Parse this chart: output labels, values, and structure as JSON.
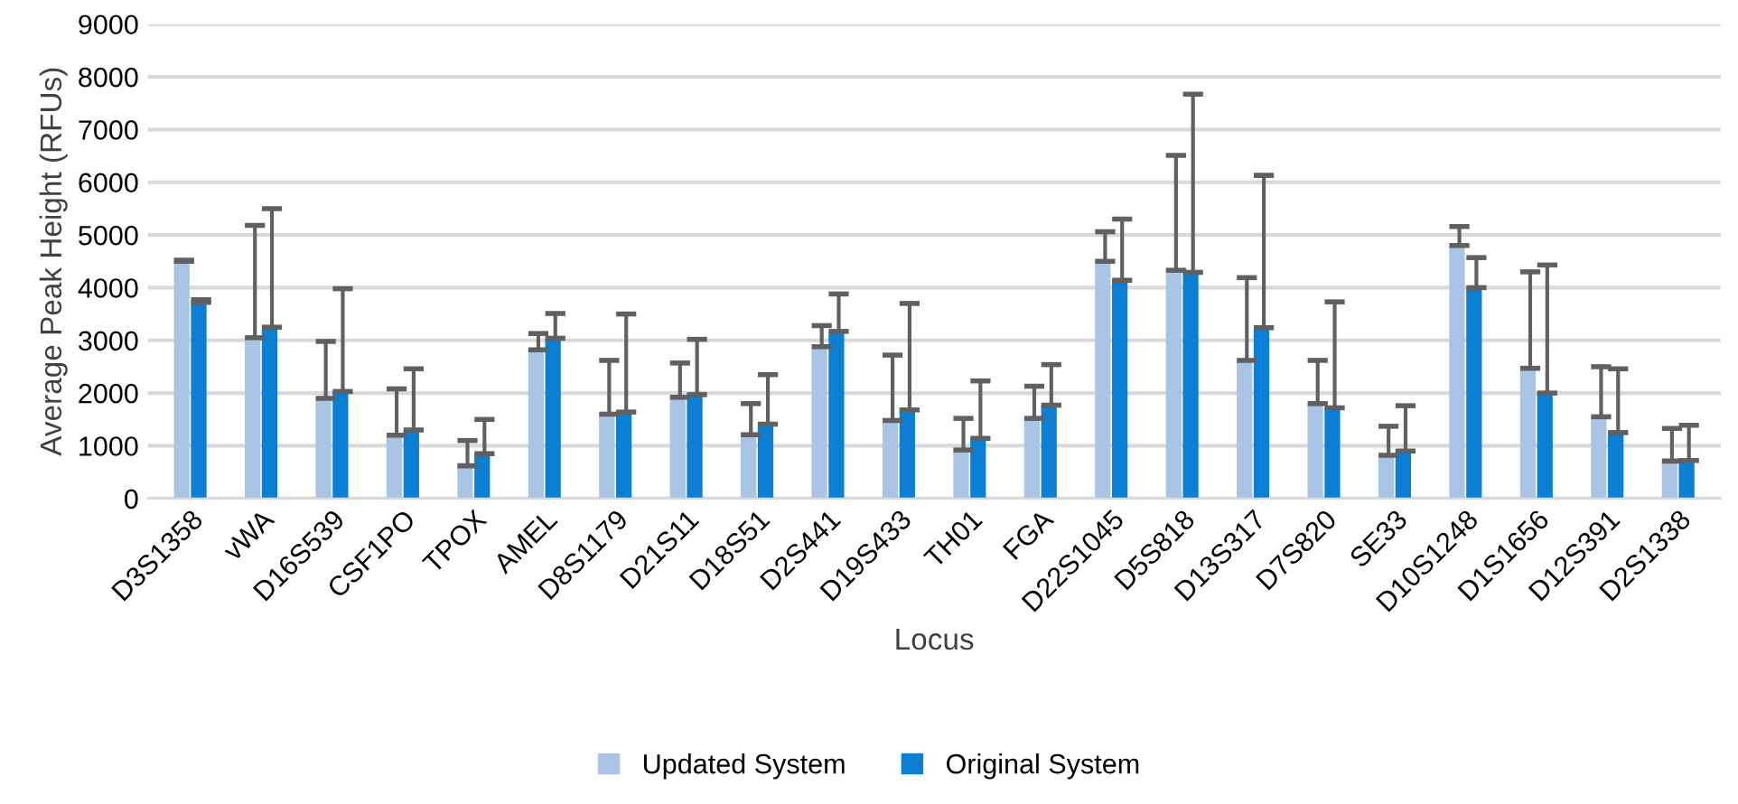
{
  "chart_data": {
    "type": "bar",
    "xlabel": "Locus",
    "ylabel": "Average Peak Height (RFUs)",
    "categories": [
      "D3S1358",
      "vWA",
      "D16S539",
      "CSF1PO",
      "TPOX",
      "AMEL",
      "D8S1179",
      "D21S11",
      "D18S51",
      "D2S441",
      "D19S433",
      "TH01",
      "FGA",
      "D22S1045",
      "D5S818",
      "D13S317",
      "D7S820",
      "SE33",
      "D10S1248",
      "D1S1656",
      "D12S391",
      "D2S1338"
    ],
    "series": [
      {
        "name": "Updated System",
        "color": "#a9c4e4",
        "values": [
          4500,
          3050,
          1900,
          1200,
          620,
          2820,
          1600,
          1920,
          1210,
          2880,
          1480,
          920,
          1520,
          4500,
          4330,
          2620,
          1800,
          820,
          4800,
          2470,
          1550,
          710
        ],
        "errors": [
          [
            4500,
            4520
          ],
          [
            3050,
            5180
          ],
          [
            1900,
            2980
          ],
          [
            1200,
            2080
          ],
          [
            620,
            1100
          ],
          [
            2820,
            3130
          ],
          [
            1600,
            2620
          ],
          [
            1920,
            2570
          ],
          [
            1210,
            1800
          ],
          [
            2880,
            3280
          ],
          [
            1480,
            2720
          ],
          [
            920,
            1520
          ],
          [
            1520,
            2130
          ],
          [
            4500,
            5060
          ],
          [
            4330,
            6510
          ],
          [
            2620,
            4190
          ],
          [
            1800,
            2620
          ],
          [
            820,
            1370
          ],
          [
            4800,
            5160
          ],
          [
            2470,
            4300
          ],
          [
            1550,
            2500
          ],
          [
            710,
            1330
          ]
        ]
      },
      {
        "name": "Original System",
        "color": "#0a7fd4",
        "values": [
          3720,
          3250,
          2030,
          1300,
          850,
          3040,
          1640,
          1970,
          1410,
          3170,
          1680,
          1140,
          1770,
          4140,
          4290,
          3240,
          1720,
          900,
          4000,
          2000,
          1250,
          720
        ],
        "errors": [
          [
            3720,
            3770
          ],
          [
            3250,
            5500
          ],
          [
            2030,
            3980
          ],
          [
            1300,
            2460
          ],
          [
            850,
            1500
          ],
          [
            3040,
            3510
          ],
          [
            1640,
            3500
          ],
          [
            1970,
            3020
          ],
          [
            1410,
            2350
          ],
          [
            3170,
            3880
          ],
          [
            1680,
            3700
          ],
          [
            1140,
            2230
          ],
          [
            1770,
            2540
          ],
          [
            4140,
            5300
          ],
          [
            4290,
            7670
          ],
          [
            3240,
            6130
          ],
          [
            1720,
            3730
          ],
          [
            900,
            1760
          ],
          [
            4000,
            4570
          ],
          [
            2000,
            4430
          ],
          [
            1250,
            2460
          ],
          [
            720,
            1390
          ]
        ]
      }
    ],
    "ylim": [
      0,
      9000
    ],
    "yticks": [
      0,
      1000,
      2000,
      3000,
      4000,
      5000,
      6000,
      7000,
      8000,
      9000
    ],
    "grid": "y",
    "legend": "bottom"
  }
}
